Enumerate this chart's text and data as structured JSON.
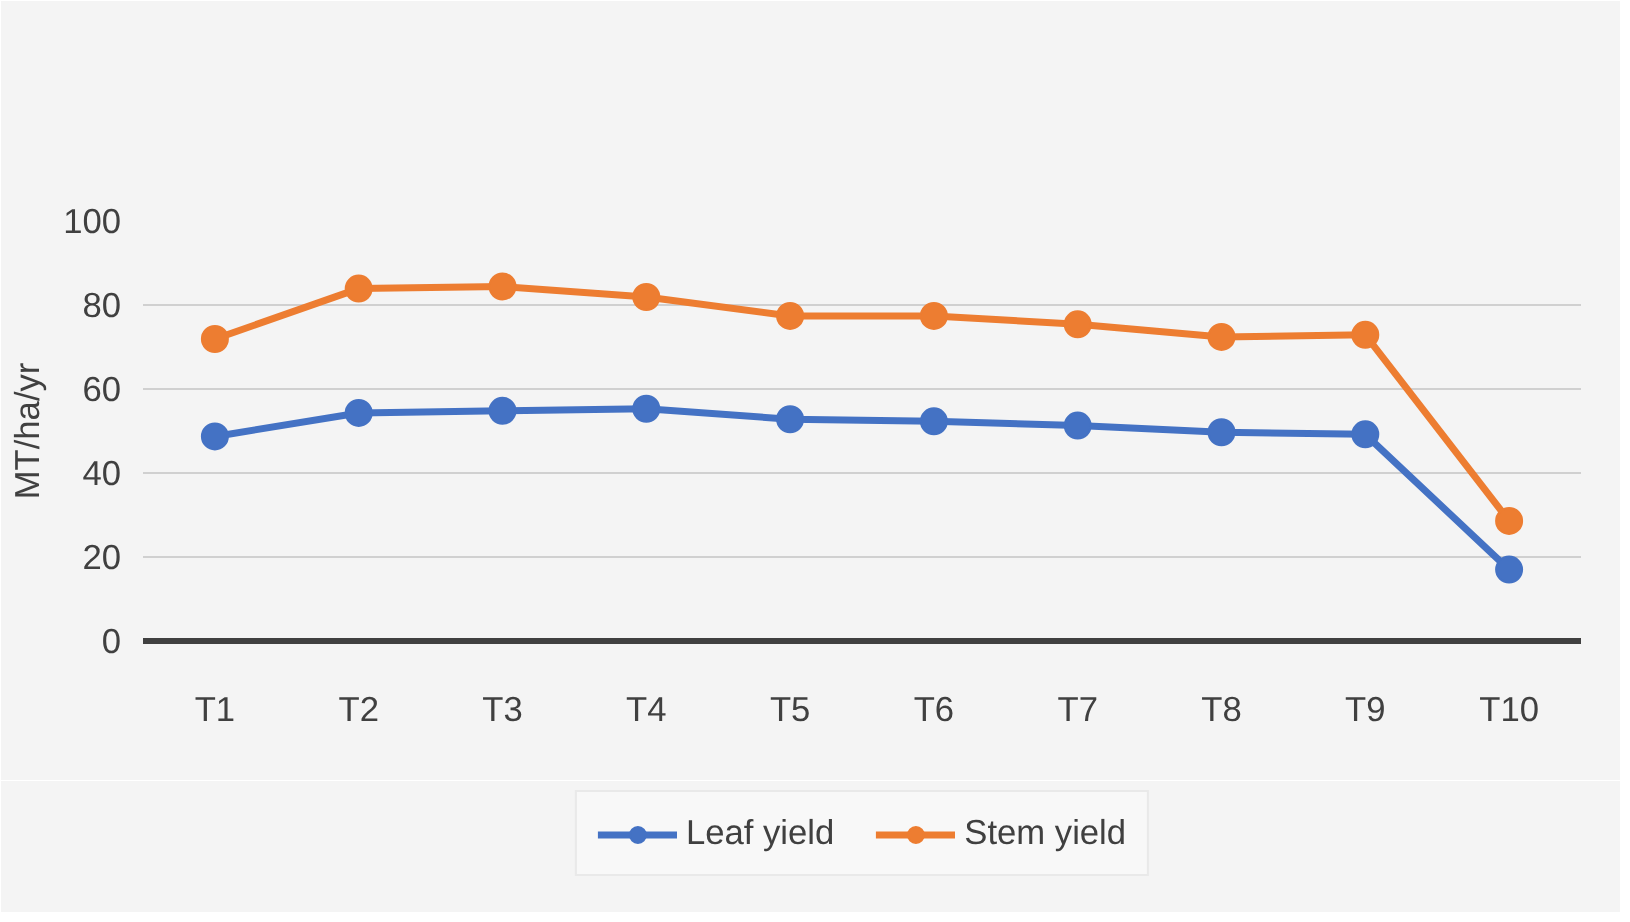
{
  "chart_data": {
    "type": "line",
    "ylabel": "MT/ha/yr",
    "categories": [
      "T1",
      "T2",
      "T3",
      "T4",
      "T5",
      "T6",
      "T7",
      "T8",
      "T9",
      "T10"
    ],
    "series": [
      {
        "name": "Leaf yield",
        "color": "#4472c4",
        "values": [
          48.7,
          54.3,
          54.8,
          55.3,
          52.8,
          52.3,
          51.3,
          49.7,
          49.2,
          17
        ]
      },
      {
        "name": "Stem yield",
        "color": "#ed7d31",
        "values": [
          71.9,
          83.9,
          84.4,
          81.9,
          77.4,
          77.4,
          75.4,
          72.4,
          72.9,
          28.6
        ]
      }
    ],
    "ylim": [
      0,
      100
    ],
    "yticks": [
      0,
      20,
      40,
      60,
      80,
      100
    ],
    "grid": "y",
    "legend": "bottom",
    "marker": "circle",
    "line_style": "solid"
  }
}
